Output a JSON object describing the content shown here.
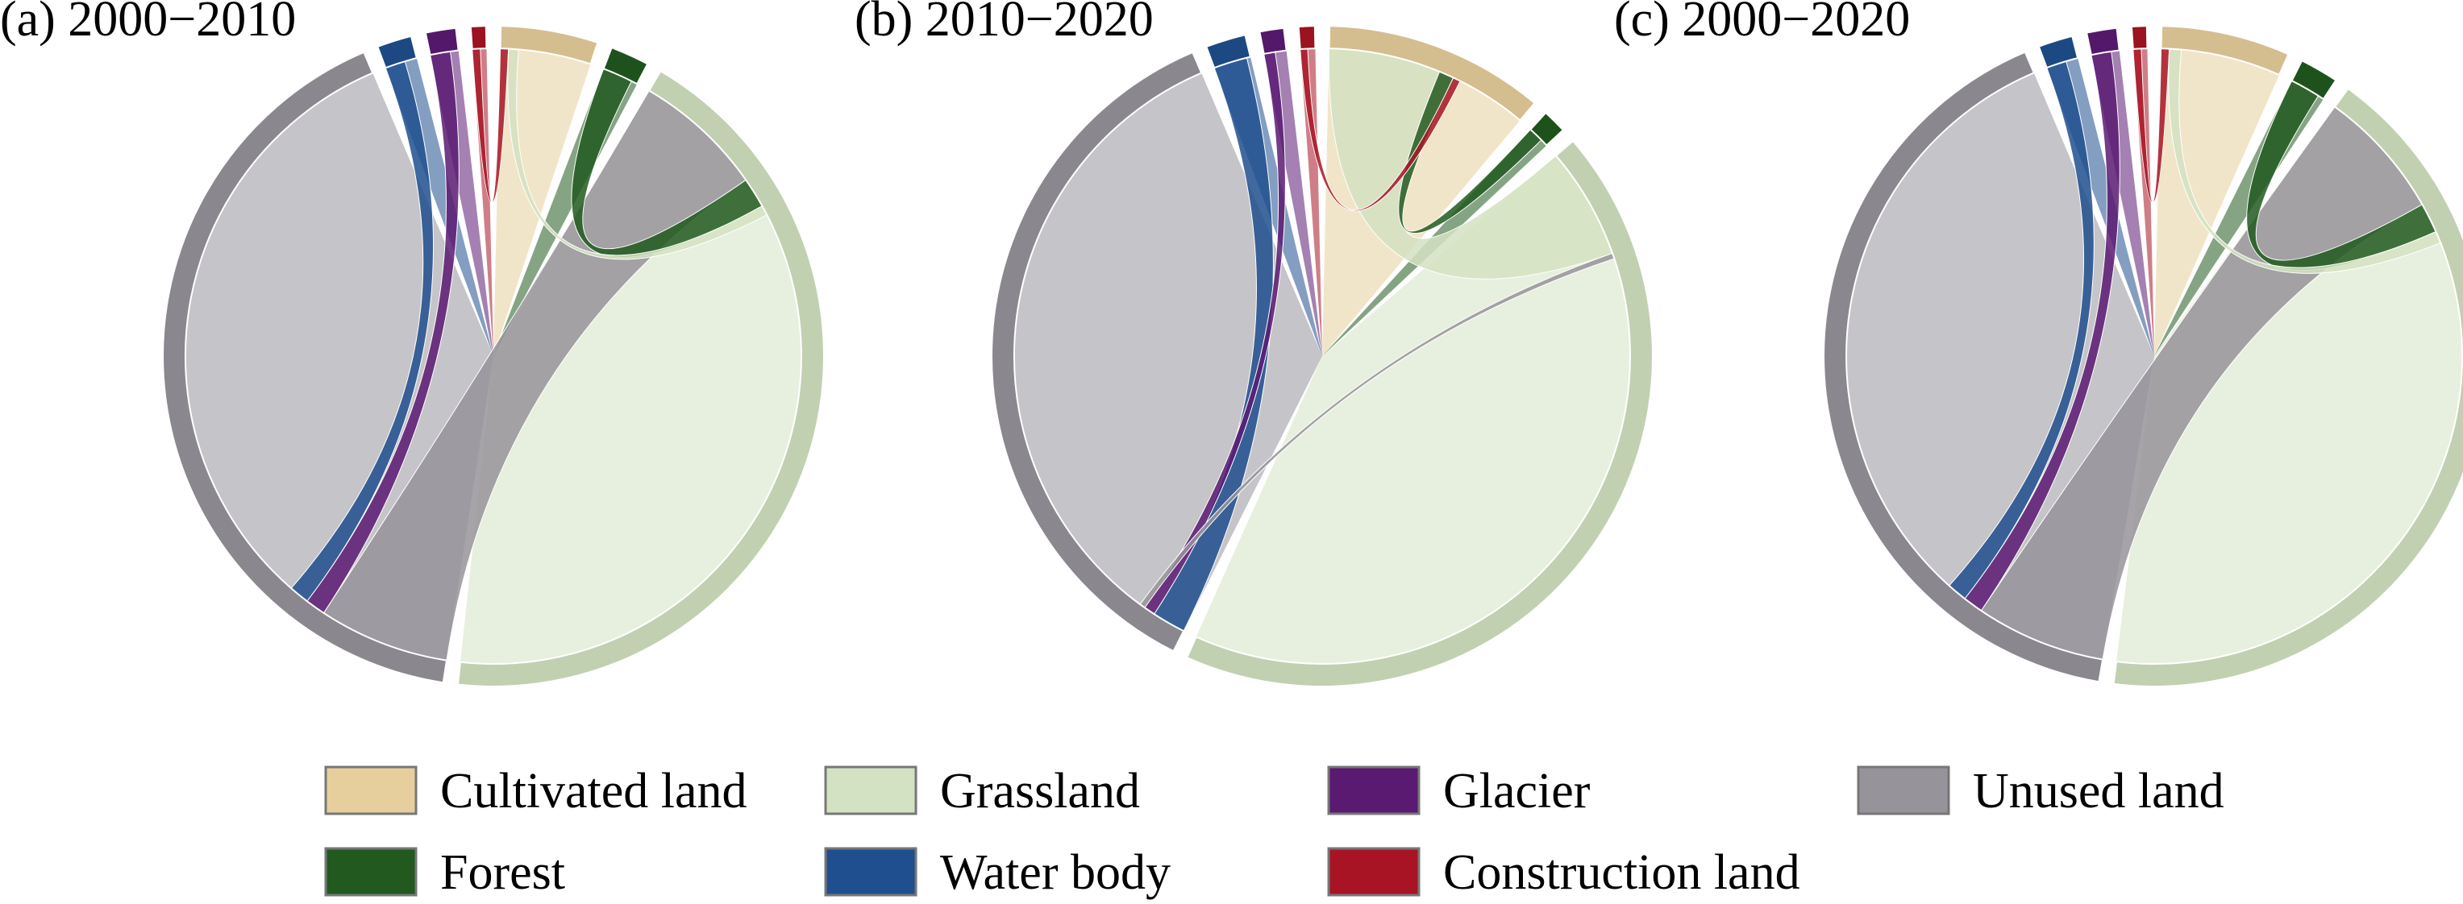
{
  "legend": [
    {
      "name": "Cultivated land",
      "color": "#e6cf9c"
    },
    {
      "name": "Grassland",
      "color": "#d3e2c2"
    },
    {
      "name": "Glacier",
      "color": "#5a1a72"
    },
    {
      "name": "Unused land",
      "color": "#96939a"
    },
    {
      "name": "Forest",
      "color": "#21591f"
    },
    {
      "name": "Water body",
      "color": "#1f4f8e"
    },
    {
      "name": "Construction land",
      "color": "#a81424"
    }
  ],
  "chart_data": [
    {
      "type": "chord",
      "title": "(a) 2000−2010",
      "categories": [
        "Cultivated land",
        "Forest",
        "Grassland",
        "Unused land",
        "Water body",
        "Glacier",
        "Construction land"
      ],
      "segment_shares": [
        0.045,
        0.018,
        0.41,
        0.39,
        0.016,
        0.014,
        0.007
      ],
      "flows": [
        {
          "from": "Unused land",
          "to": "Grassland",
          "share": 0.065
        },
        {
          "from": "Forest",
          "to": "Grassland",
          "share": 0.015
        },
        {
          "from": "Glacier",
          "to": "Unused land",
          "share": 0.01
        },
        {
          "from": "Water body",
          "to": "Unused land",
          "share": 0.01
        },
        {
          "from": "Construction land",
          "to": "Cultivated land",
          "share": 0.004
        },
        {
          "from": "Grassland",
          "to": "Cultivated land",
          "share": 0.005
        }
      ]
    },
    {
      "type": "chord",
      "title": "(b) 2010−2020",
      "categories": [
        "Cultivated land",
        "Forest",
        "Grassland",
        "Unused land",
        "Water body",
        "Glacier",
        "Construction land"
      ],
      "segment_shares": [
        0.11,
        0.012,
        0.44,
        0.37,
        0.02,
        0.012,
        0.008
      ],
      "flows": [
        {
          "from": "Grassland",
          "to": "Cultivated land",
          "share": 0.06
        },
        {
          "from": "Water body",
          "to": "Unused land",
          "share": 0.018
        },
        {
          "from": "Forest",
          "to": "Cultivated land",
          "share": 0.008
        },
        {
          "from": "Glacier",
          "to": "Unused land",
          "share": 0.006
        },
        {
          "from": "Construction land",
          "to": "Cultivated land",
          "share": 0.004
        },
        {
          "from": "Unused land",
          "to": "Grassland",
          "share": 0.003
        }
      ]
    },
    {
      "type": "chord",
      "title": "(c) 2000−2020",
      "categories": [
        "Cultivated land",
        "Forest",
        "Grassland",
        "Unused land",
        "Water body",
        "Glacier",
        "Construction land"
      ],
      "segment_shares": [
        0.06,
        0.018,
        0.4,
        0.39,
        0.016,
        0.014,
        0.007
      ],
      "flows": [
        {
          "from": "Unused land",
          "to": "Grassland",
          "share": 0.065
        },
        {
          "from": "Forest",
          "to": "Grassland",
          "share": 0.015
        },
        {
          "from": "Glacier",
          "to": "Unused land",
          "share": 0.01
        },
        {
          "from": "Water body",
          "to": "Unused land",
          "share": 0.01
        },
        {
          "from": "Construction land",
          "to": "Cultivated land",
          "share": 0.004
        },
        {
          "from": "Grassland",
          "to": "Cultivated land",
          "share": 0.006
        }
      ]
    }
  ]
}
